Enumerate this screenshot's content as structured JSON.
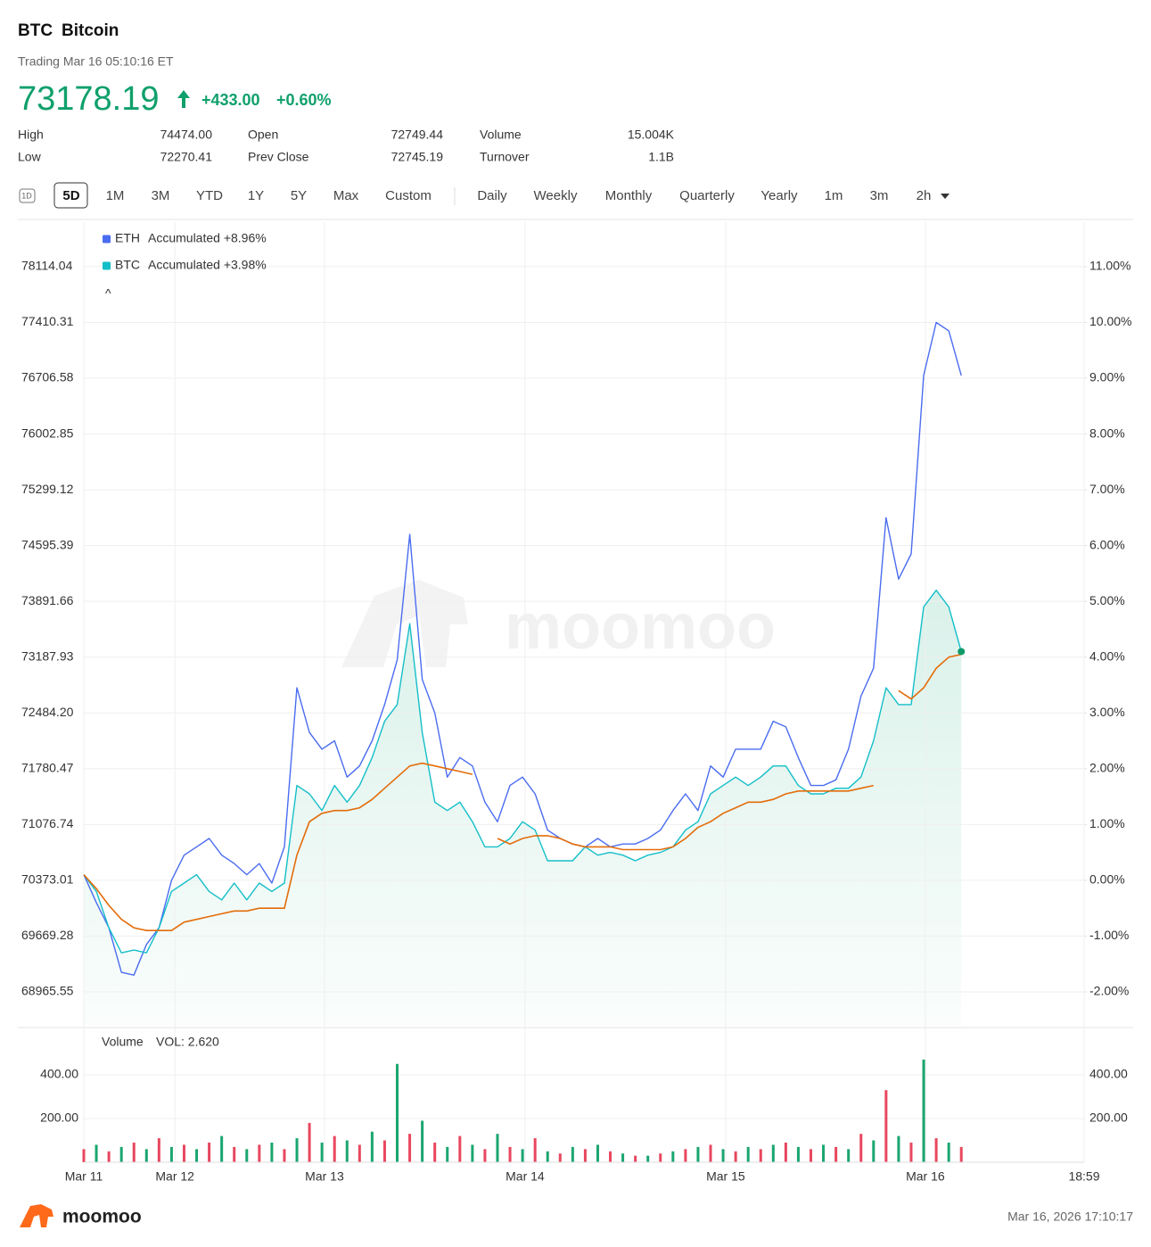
{
  "header": {
    "symbol": "BTC",
    "name": "Bitcoin",
    "status": "Trading Mar 16 05:10:16 ET",
    "price": "73178.19",
    "change": "+433.00",
    "change_pct": "+0.60%"
  },
  "stats": [
    {
      "label": "High",
      "value": "74474.00"
    },
    {
      "label": "Low",
      "value": "72270.41"
    },
    {
      "label": "Open",
      "value": "72749.44"
    },
    {
      "label": "Prev Close",
      "value": "72745.19"
    },
    {
      "label": "Volume",
      "value": "15.004K"
    },
    {
      "label": "Turnover",
      "value": "1.1B"
    }
  ],
  "tabs": {
    "range": [
      "1D",
      "5D",
      "1M",
      "3M",
      "YTD",
      "1Y",
      "5Y",
      "Max",
      "Custom"
    ],
    "interval": [
      "Daily",
      "Weekly",
      "Monthly",
      "Quarterly",
      "Yearly",
      "1m",
      "3m",
      "2h"
    ],
    "selected": "5D"
  },
  "chart_data": {
    "type": "line",
    "grid": true,
    "x": [
      0,
      1.5,
      3,
      4.5,
      6,
      7.5,
      9,
      10.5,
      12,
      13.5,
      15,
      16.5,
      18,
      19.5,
      21,
      22.5,
      24,
      25.5,
      27,
      28.5,
      30,
      31.5,
      33,
      34.5,
      36,
      37.5,
      39,
      40.5,
      42,
      43.5,
      45,
      46.5,
      48,
      49.5,
      51,
      52.5,
      54,
      55.5,
      57,
      58.5,
      60,
      61.5,
      63,
      64.5,
      66,
      67.5,
      69,
      70.5,
      72,
      73.5,
      75,
      76.5,
      78,
      79.5,
      81,
      82.5,
      84,
      85.5,
      87,
      88.5,
      90,
      91.5,
      93,
      94.5,
      96,
      97.5,
      99,
      100.5,
      102,
      103.5,
      105
    ],
    "xlim": [
      0,
      119.7
    ],
    "xticks": [
      {
        "value": 0,
        "label": "Mar 11"
      },
      {
        "value": 10.9,
        "label": "Mar 12"
      },
      {
        "value": 28.8,
        "label": "Mar 13"
      },
      {
        "value": 52.8,
        "label": "Mar 14"
      },
      {
        "value": 76.8,
        "label": "Mar 15"
      },
      {
        "value": 100.7,
        "label": "Mar 16"
      },
      {
        "value": 119.7,
        "label": "18:59"
      }
    ],
    "ylim": [
      68543.31,
      78677.03
    ],
    "yticks": [
      78114.04,
      77410.31,
      76706.58,
      76002.85,
      75299.12,
      74595.39,
      73891.66,
      73187.93,
      {
        "value": 72484.2,
        "label": "72484.20"
      },
      71780.47,
      71076.74,
      70373.01,
      69669.28,
      68965.55
    ],
    "y2lim": [
      -2.6,
      11.8
    ],
    "y2ticks": [
      {
        "value": 11,
        "label": "11.00%"
      },
      {
        "value": 10,
        "label": "10.00%"
      },
      {
        "value": 9,
        "label": "9.00%"
      },
      {
        "value": 8,
        "label": "8.00%"
      },
      {
        "value": 7,
        "label": "7.00%"
      },
      {
        "value": 6,
        "label": "6.00%"
      },
      {
        "value": 5,
        "label": "5.00%"
      },
      {
        "value": 4,
        "label": "4.00%"
      },
      {
        "value": 3,
        "label": "3.00%"
      },
      {
        "value": 2,
        "label": "2.00%"
      },
      {
        "value": 1,
        "label": "1.00%"
      },
      {
        "value": 0,
        "label": "0.00%"
      },
      {
        "value": -1,
        "label": "-1.00%"
      },
      {
        "value": -2,
        "label": "-2.00%"
      }
    ],
    "series": [
      {
        "name": "ETH",
        "legend_text": "Accumulated +8.96%",
        "color": "#4a6cf0",
        "axis": "y2",
        "values": [
          0.1,
          -0.4,
          -0.85,
          -1.65,
          -1.7,
          -1.15,
          -0.85,
          0,
          0.45,
          0.6,
          0.75,
          0.45,
          0.3,
          0.1,
          0.3,
          -0.05,
          0.6,
          3.45,
          2.65,
          2.35,
          2.5,
          1.85,
          2.05,
          2.5,
          3.15,
          3.95,
          6.2,
          3.6,
          3.0,
          1.85,
          2.2,
          2.05,
          1.4,
          1.05,
          1.7,
          1.85,
          1.55,
          0.9,
          0.75,
          0.65,
          0.6,
          0.75,
          0.6,
          0.65,
          0.65,
          0.75,
          0.9,
          1.25,
          1.55,
          1.25,
          2.05,
          1.85,
          2.35,
          2.35,
          2.35,
          2.85,
          2.75,
          2.2,
          1.7,
          1.7,
          1.8,
          2.35,
          3.3,
          3.8,
          6.5,
          5.4,
          5.85,
          9.05,
          10.0,
          9.85,
          9.05
        ]
      },
      {
        "name": "BTC",
        "legend_text": "Accumulated +3.98%",
        "color": "#14bec8",
        "axis": "y2",
        "fill": true,
        "values": [
          0.1,
          -0.2,
          -0.85,
          -1.3,
          -1.25,
          -1.3,
          -0.85,
          -0.2,
          -0.05,
          0.1,
          -0.2,
          -0.35,
          -0.05,
          -0.35,
          -0.05,
          -0.2,
          -0.05,
          1.7,
          1.55,
          1.25,
          1.7,
          1.4,
          1.7,
          2.2,
          2.85,
          3.15,
          4.6,
          2.65,
          1.4,
          1.25,
          1.4,
          1.05,
          0.6,
          0.6,
          0.75,
          1.05,
          0.9,
          0.35,
          0.35,
          0.35,
          0.6,
          0.45,
          0.5,
          0.45,
          0.35,
          0.45,
          0.5,
          0.6,
          0.9,
          1.05,
          1.55,
          1.7,
          1.85,
          1.7,
          1.85,
          2.05,
          2.05,
          1.7,
          1.55,
          1.55,
          1.65,
          1.65,
          1.85,
          2.5,
          3.45,
          3.15,
          3.15,
          4.9,
          5.2,
          4.9,
          4.1
        ]
      }
    ],
    "moving_average": {
      "color": "#e36c0a",
      "axis": "y2",
      "values": [
        0.1,
        -0.15,
        -0.45,
        -0.7,
        -0.85,
        -0.9,
        -0.9,
        -0.9,
        -0.75,
        -0.7,
        -0.65,
        -0.6,
        -0.55,
        -0.55,
        -0.5,
        -0.5,
        -0.5,
        0.45,
        1.05,
        1.2,
        1.25,
        1.25,
        1.3,
        1.45,
        1.65,
        1.85,
        2.05,
        2.1,
        2.05,
        2.0,
        1.95,
        1.9,
        null,
        0.75,
        0.65,
        0.75,
        0.8,
        0.8,
        0.75,
        0.65,
        0.6,
        0.6,
        0.6,
        0.55,
        0.55,
        0.55,
        0.55,
        0.6,
        0.75,
        0.95,
        1.05,
        1.2,
        1.3,
        1.4,
        1.4,
        1.45,
        1.55,
        1.6,
        1.6,
        1.6,
        1.6,
        1.6,
        1.65,
        1.7,
        null,
        3.4,
        3.25,
        3.45,
        3.8,
        4.0,
        4.05
      ]
    },
    "volume": {
      "title": "Volume",
      "label": "VOL: 2.620",
      "ylim": [
        0,
        500
      ],
      "yticks": [
        {
          "value": 400,
          "label": "400.00"
        },
        {
          "value": 200,
          "label": "200.00"
        }
      ],
      "values": [
        60,
        80,
        50,
        70,
        90,
        60,
        110,
        70,
        80,
        60,
        90,
        120,
        70,
        60,
        80,
        90,
        60,
        110,
        180,
        90,
        120,
        100,
        80,
        140,
        100,
        450,
        130,
        190,
        90,
        70,
        120,
        80,
        60,
        130,
        70,
        60,
        110,
        50,
        40,
        70,
        60,
        80,
        50,
        40,
        30,
        30,
        40,
        50,
        60,
        70,
        80,
        60,
        50,
        70,
        60,
        80,
        90,
        70,
        60,
        80,
        70,
        60,
        130,
        100,
        330,
        120,
        90,
        470,
        110,
        90,
        70
      ],
      "colors": [
        "#e8475f",
        "#1aa66f",
        "#e8475f",
        "#1aa66f",
        "#e8475f",
        "#1aa66f",
        "#e8475f",
        "#1aa66f",
        "#e8475f",
        "#1aa66f",
        "#e8475f",
        "#1aa66f",
        "#e8475f",
        "#1aa66f",
        "#e8475f",
        "#1aa66f",
        "#e8475f",
        "#1aa66f",
        "#e8475f",
        "#1aa66f",
        "#e8475f",
        "#1aa66f",
        "#e8475f",
        "#1aa66f",
        "#e8475f",
        "#1aa66f",
        "#e8475f",
        "#1aa66f",
        "#e8475f",
        "#1aa66f",
        "#e8475f",
        "#1aa66f",
        "#e8475f",
        "#1aa66f",
        "#e8475f",
        "#1aa66f",
        "#e8475f",
        "#1aa66f",
        "#e8475f",
        "#1aa66f",
        "#e8475f",
        "#1aa66f",
        "#e8475f",
        "#1aa66f",
        "#e8475f",
        "#1aa66f",
        "#e8475f",
        "#1aa66f",
        "#e8475f",
        "#1aa66f",
        "#e8475f",
        "#1aa66f",
        "#e8475f",
        "#1aa66f",
        "#e8475f",
        "#1aa66f",
        "#e8475f",
        "#1aa66f",
        "#e8475f",
        "#1aa66f",
        "#e8475f",
        "#1aa66f",
        "#e8475f",
        "#1aa66f",
        "#e8475f",
        "#1aa66f",
        "#e8475f",
        "#1aa66f",
        "#e8475f",
        "#1aa66f",
        "#e8475f"
      ]
    }
  },
  "watermark": "moomoo",
  "footer": {
    "brand": "moomoo",
    "timestamp": "Mar 16, 2026 17:10:17"
  }
}
